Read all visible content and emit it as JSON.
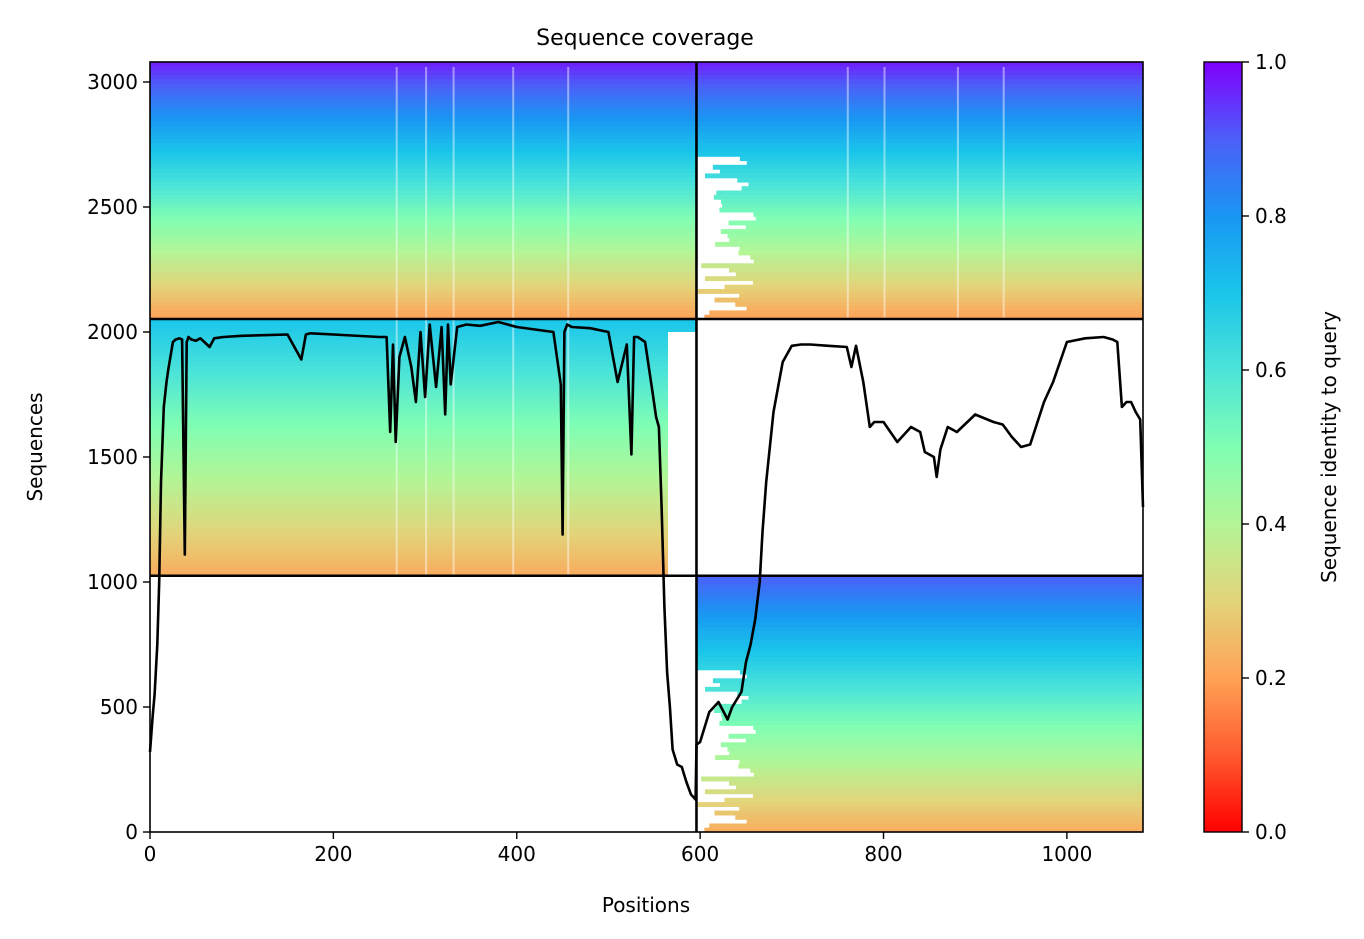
{
  "chart_data": {
    "type": "heatmap",
    "title": "Sequence coverage",
    "xlabel": "Positions",
    "ylabel": "Sequences",
    "xlim": [
      0,
      1083
    ],
    "ylim": [
      0,
      3080
    ],
    "xticks": [
      0,
      200,
      400,
      600,
      800,
      1000
    ],
    "yticks": [
      0,
      500,
      1000,
      1500,
      2000,
      2500,
      3000
    ],
    "grid": false,
    "colormap": "rainbow_r",
    "colorbar": {
      "label": "Sequence identity to query",
      "range": [
        0,
        1
      ],
      "ticks": [
        "0.0",
        "0.2",
        "0.4",
        "0.6",
        "0.8",
        "1.0"
      ]
    },
    "chain_boundaries": {
      "positions": [
        596
      ],
      "sequences": [
        1025,
        2052
      ]
    },
    "blocks": [
      {
        "name": "chain-A-paired",
        "x": [
          0,
          596
        ],
        "y": [
          2052,
          3080
        ],
        "identity_top": 0.97,
        "identity_bottom": 0.2
      },
      {
        "name": "chain-B-paired",
        "x": [
          596,
          1083
        ],
        "y": [
          2052,
          3080
        ],
        "identity_top": 0.97,
        "identity_bottom": 0.2
      },
      {
        "name": "chain-A-unpaired",
        "x": [
          0,
          596
        ],
        "y": [
          1025,
          2052
        ],
        "identity_top": 0.7,
        "identity_bottom": 0.22
      },
      {
        "name": "chain-B-unpaired",
        "x": [
          596,
          1083
        ],
        "y": [
          0,
          1025
        ],
        "identity_top": 0.9,
        "identity_bottom": 0.22
      }
    ],
    "coverage_line": {
      "x": [
        0,
        3,
        5,
        8,
        10,
        12,
        15,
        18,
        20,
        25,
        28,
        32,
        35,
        38,
        40,
        42,
        45,
        50,
        55,
        65,
        70,
        80,
        100,
        150,
        165,
        170,
        175,
        200,
        250,
        258,
        262,
        265,
        268,
        272,
        278,
        285,
        290,
        295,
        300,
        305,
        312,
        318,
        322,
        325,
        328,
        335,
        345,
        360,
        380,
        400,
        420,
        440,
        448,
        450,
        452,
        455,
        460,
        480,
        500,
        510,
        520,
        525,
        528,
        532,
        540,
        548,
        552,
        555,
        558,
        561,
        564,
        567,
        570,
        575,
        580,
        585,
        590,
        595,
        596,
        600,
        610,
        615,
        620,
        630,
        635,
        640,
        645,
        650,
        655,
        660,
        665,
        668,
        672,
        680,
        690,
        700,
        710,
        720,
        740,
        760,
        765,
        770,
        778,
        785,
        790,
        800,
        815,
        830,
        840,
        845,
        855,
        858,
        862,
        870,
        880,
        900,
        920,
        930,
        940,
        950,
        960,
        975,
        985,
        1000,
        1020,
        1040,
        1050,
        1055,
        1060,
        1065,
        1070,
        1075,
        1080,
        1083
      ],
      "y": [
        320,
        470,
        550,
        750,
        1000,
        1400,
        1700,
        1800,
        1850,
        1960,
        1970,
        1975,
        1970,
        1110,
        1960,
        1980,
        1970,
        1965,
        1975,
        1940,
        1975,
        1980,
        1985,
        1990,
        1890,
        1990,
        1995,
        1990,
        1980,
        1980,
        1600,
        1950,
        1560,
        1900,
        1980,
        1860,
        1720,
        2000,
        1740,
        2030,
        1780,
        2020,
        1670,
        2030,
        1790,
        2020,
        2030,
        2025,
        2040,
        2020,
        2010,
        2000,
        1790,
        1190,
        2000,
        2030,
        2020,
        2015,
        2000,
        1800,
        1950,
        1510,
        1980,
        1980,
        1960,
        1760,
        1660,
        1620,
        1300,
        900,
        640,
        500,
        330,
        270,
        260,
        200,
        150,
        130,
        350,
        360,
        480,
        500,
        520,
        450,
        500,
        530,
        560,
        680,
        750,
        850,
        1000,
        1200,
        1400,
        1680,
        1880,
        1945,
        1950,
        1950,
        1945,
        1940,
        1860,
        1945,
        1800,
        1620,
        1640,
        1640,
        1560,
        1620,
        1600,
        1520,
        1500,
        1420,
        1530,
        1620,
        1600,
        1670,
        1640,
        1630,
        1580,
        1540,
        1550,
        1720,
        1800,
        1960,
        1975,
        1980,
        1970,
        1960,
        1700,
        1720,
        1720,
        1680,
        1650,
        1300,
        1160
      ]
    }
  }
}
